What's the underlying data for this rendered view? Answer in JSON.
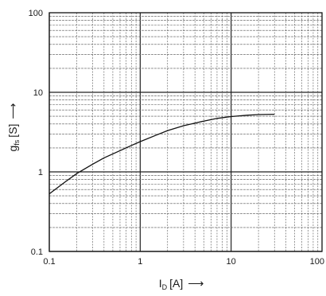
{
  "chart_data": {
    "type": "line",
    "title": "",
    "xlabel": {
      "symbol": "I",
      "subscript": "D",
      "unit": "[A]",
      "arrow": "⟶"
    },
    "ylabel": {
      "symbol": "g",
      "subscript": "fs",
      "unit": "[S]",
      "arrow": "⟶"
    },
    "xscale": "log",
    "yscale": "log",
    "xlim": [
      0.1,
      100
    ],
    "ylim": [
      0.1,
      100
    ],
    "x_ticks": [
      {
        "value": 0.1,
        "label": "0.1"
      },
      {
        "value": 1,
        "label": "1"
      },
      {
        "value": 10,
        "label": "10"
      },
      {
        "value": 100,
        "label": "100"
      }
    ],
    "y_ticks": [
      {
        "value": 0.1,
        "label": "0.1"
      },
      {
        "value": 1,
        "label": "1"
      },
      {
        "value": 10,
        "label": "10"
      },
      {
        "value": 100,
        "label": "100"
      }
    ],
    "grid": true,
    "series": [
      {
        "color": "#111111",
        "points": [
          {
            "x": 0.1,
            "y": 0.53
          },
          {
            "x": 0.15,
            "y": 0.75
          },
          {
            "x": 0.2,
            "y": 0.95
          },
          {
            "x": 0.3,
            "y": 1.25
          },
          {
            "x": 0.4,
            "y": 1.5
          },
          {
            "x": 0.6,
            "y": 1.85
          },
          {
            "x": 0.8,
            "y": 2.15
          },
          {
            "x": 1,
            "y": 2.4
          },
          {
            "x": 1.5,
            "y": 2.9
          },
          {
            "x": 2,
            "y": 3.3
          },
          {
            "x": 3,
            "y": 3.8
          },
          {
            "x": 4,
            "y": 4.1
          },
          {
            "x": 5,
            "y": 4.35
          },
          {
            "x": 7,
            "y": 4.7
          },
          {
            "x": 10,
            "y": 4.95
          },
          {
            "x": 15,
            "y": 5.15
          },
          {
            "x": 20,
            "y": 5.25
          },
          {
            "x": 30,
            "y": 5.3
          }
        ]
      }
    ]
  }
}
